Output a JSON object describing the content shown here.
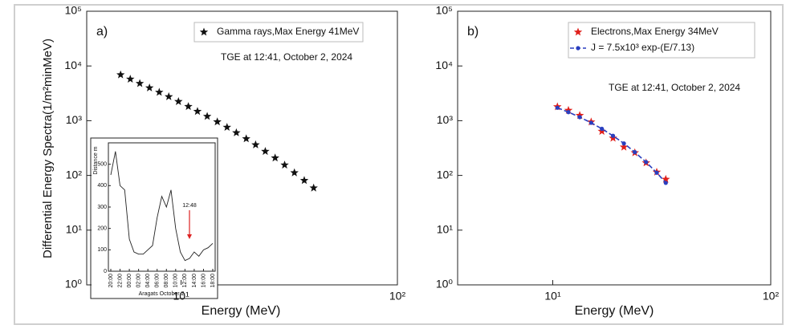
{
  "chart_data": [
    {
      "type": "scatter",
      "panel_label": "a)",
      "xlabel": "Energy (MeV)",
      "ylabel": "Differential Energy Spectra(1/m²minMeV)",
      "annotation": "TGE at  12:41, October 2, 2024",
      "log_x": true,
      "log_y": true,
      "legend": "upper right",
      "xlim": [
        3.66,
        100
      ],
      "xticks": [
        {
          "value": 10,
          "label": "10¹"
        },
        {
          "value": 100,
          "label": "10²"
        }
      ],
      "ylim": [
        1,
        100000
      ],
      "yticks": [
        {
          "value": 1,
          "label": "10⁰"
        },
        {
          "value": 10,
          "label": "10¹"
        },
        {
          "value": 100,
          "label": "10²"
        },
        {
          "value": 1000,
          "label": "10³"
        },
        {
          "value": 10000,
          "label": "10⁴"
        },
        {
          "value": 100000,
          "label": "10⁵"
        }
      ],
      "x": [
        5.25,
        5.82,
        6.44,
        7.14,
        7.92,
        8.77,
        9.72,
        10.8,
        11.9,
        13.2,
        14.7,
        16.3,
        18.0,
        20.0,
        22.1,
        24.5,
        27.2,
        30.1,
        33.4,
        37.1,
        41.0
      ],
      "series": [
        {
          "name": "Gamma rays,Max Energy 41MeV",
          "color": "#111111",
          "mode": "markers",
          "values": [
            6900,
            5750,
            4790,
            3980,
            3310,
            2750,
            2240,
            1820,
            1480,
            1200,
            955,
            759,
            603,
            468,
            363,
            275,
            209,
            155,
            112,
            81,
            59
          ]
        }
      ]
    },
    {
      "type": "scatter",
      "panel_label": "b)",
      "xlabel": "Energy (MeV)",
      "annotation": "TGE at  12:41, October 2, 2024",
      "log_x": true,
      "log_y": true,
      "legend": "upper right",
      "xlim": [
        3.66,
        100
      ],
      "xticks": [
        {
          "value": 10,
          "label": "10¹"
        },
        {
          "value": 100,
          "label": "10²"
        }
      ],
      "ylim": [
        1,
        100000
      ],
      "yticks": [
        {
          "value": 1,
          "label": "10⁰"
        },
        {
          "value": 10,
          "label": "10¹"
        },
        {
          "value": 100,
          "label": "10²"
        },
        {
          "value": 1000,
          "label": "10³"
        },
        {
          "value": 10000,
          "label": "10⁴"
        },
        {
          "value": 100000,
          "label": "10⁵"
        }
      ],
      "x": [
        10.5,
        11.8,
        13.3,
        15,
        16.8,
        18.9,
        21.2,
        23.8,
        26.8,
        30,
        33
      ],
      "series": [
        {
          "name": "Electrons,Max Energy 34MeV",
          "color": "#e0201b",
          "mode": "markers",
          "values": [
            1800,
            1550,
            1250,
            950,
            640,
            480,
            330,
            260,
            170,
            115,
            85
          ]
        },
        {
          "name": "J =  7.5x10³ exp-(E/7.13)",
          "color": "#2a3fbf",
          "mode": "lines+markers",
          "values": [
            1720,
            1433,
            1161,
            915,
            711,
            529,
            384,
            266,
            175,
            112,
            73
          ]
        }
      ]
    },
    {
      "type": "line",
      "xlabel": "Aragats October 2",
      "ylabel": "Distance m",
      "annotation": "12:48",
      "color": "#222222",
      "categories": [
        "20:00",
        null,
        "22:00",
        null,
        "00:00",
        null,
        "02:00",
        null,
        "04:00",
        null,
        "06:00",
        null,
        "08:00",
        null,
        "10:00",
        null,
        "12:00",
        null,
        "14:00",
        null,
        "16:00",
        null,
        "18:00"
      ],
      "values": [
        450,
        560,
        400,
        380,
        150,
        90,
        80,
        80,
        100,
        120,
        250,
        350,
        300,
        380,
        200,
        90,
        50,
        60,
        90,
        70,
        100,
        110,
        130
      ],
      "ylim": [
        0,
        600
      ],
      "yticks": [
        0,
        100,
        200,
        300,
        400,
        500
      ]
    }
  ]
}
